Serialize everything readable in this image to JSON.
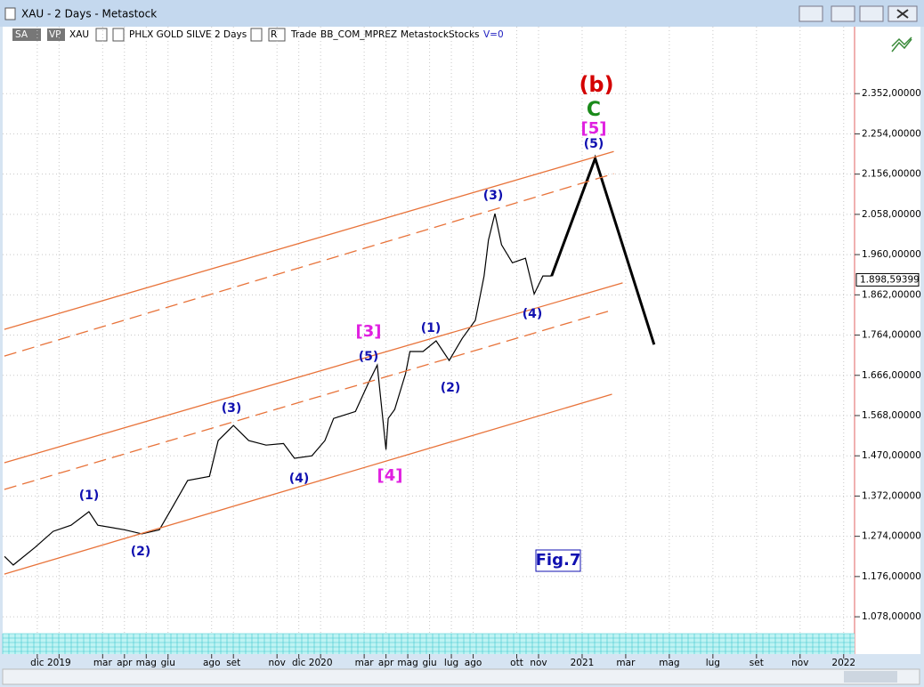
{
  "window": {
    "title": "XAU - 2 Days - Metastock",
    "toolbar": {
      "sa": "SA",
      "vp": "VP",
      "symbol": "XAU",
      "name": "PHLX GOLD SILVE",
      "period": "2 Days",
      "r": "R",
      "trade": "Trade",
      "template": "BB_COM_MPREZ",
      "source": "Metastock",
      "kind": "Stocks",
      "volume": "V=0"
    }
  },
  "chart_data": {
    "type": "line",
    "grid": true,
    "xlim": [
      -1.71,
      37.5
    ],
    "xticks": [
      {
        "value": 0,
        "label": "dic"
      },
      {
        "value": 1,
        "label": "2019"
      },
      {
        "value": 3,
        "label": "mar"
      },
      {
        "value": 4,
        "label": "apr"
      },
      {
        "value": 5,
        "label": "mag"
      },
      {
        "value": 6,
        "label": "giu"
      },
      {
        "value": 8,
        "label": "ago"
      },
      {
        "value": 9,
        "label": "set"
      },
      {
        "value": 11,
        "label": "nov"
      },
      {
        "value": 12,
        "label": "dic"
      },
      {
        "value": 13,
        "label": "2020"
      },
      {
        "value": 15,
        "label": "mar"
      },
      {
        "value": 16,
        "label": "apr"
      },
      {
        "value": 17,
        "label": "mag"
      },
      {
        "value": 18,
        "label": "giu"
      },
      {
        "value": 19,
        "label": "lug"
      },
      {
        "value": 20,
        "label": "ago"
      },
      {
        "value": 22,
        "label": "ott"
      },
      {
        "value": 23,
        "label": "nov"
      },
      {
        "value": 25,
        "label": "2021"
      },
      {
        "value": 27,
        "label": "mar"
      },
      {
        "value": 29,
        "label": "mag"
      },
      {
        "value": 31,
        "label": "lug"
      },
      {
        "value": 33,
        "label": "set"
      },
      {
        "value": 35,
        "label": "nov"
      },
      {
        "value": 37,
        "label": "2022"
      }
    ],
    "ylim": [
      1037,
      2515
    ],
    "yticks": [
      {
        "value": 1078,
        "label": "1.078,00000"
      },
      {
        "value": 1176,
        "label": "1.176,00000"
      },
      {
        "value": 1274,
        "label": "1.274,00000"
      },
      {
        "value": 1372,
        "label": "1.372,00000"
      },
      {
        "value": 1470,
        "label": "1.470,00000"
      },
      {
        "value": 1568,
        "label": "1.568,00000"
      },
      {
        "value": 1666,
        "label": "1.666,00000"
      },
      {
        "value": 1764,
        "label": "1.764,00000"
      },
      {
        "value": 1862,
        "label": "1.862,00000"
      },
      {
        "value": 1960,
        "label": "1.960,00000"
      },
      {
        "value": 2058,
        "label": "2.058,00000"
      },
      {
        "value": 2156,
        "label": "2.156,00000"
      },
      {
        "value": 2254,
        "label": "2.254,00000"
      },
      {
        "value": 2352,
        "label": "2.352,00000"
      }
    ],
    "last_price": {
      "value": 1898.59399,
      "label": "1.898,59399"
    },
    "series": [
      {
        "color": "#000000",
        "width": 1.2,
        "x": [
          -1.5,
          -1.1,
          -0.1,
          0.73,
          1.55,
          2.37,
          2.78,
          4,
          4.8,
          5.6,
          6.2,
          6.9,
          7.9,
          8.3,
          9,
          9.7,
          10.5,
          11.3,
          11.8,
          12.6,
          13.2,
          13.6,
          14.6,
          15.2,
          15.6,
          16,
          16.1,
          16.4,
          16.9,
          17.1,
          17.7,
          18.3,
          18.9,
          19.5,
          20.1,
          20.5,
          20.7,
          21,
          21.3,
          21.8,
          22.4,
          22.8,
          23.2,
          23.6
        ],
        "values": [
          1225,
          1204,
          1247,
          1286,
          1301,
          1334,
          1301,
          1290,
          1280,
          1290,
          1345,
          1410,
          1420,
          1507,
          1544,
          1507,
          1496,
          1500,
          1464,
          1470,
          1507,
          1561,
          1578,
          1648,
          1691,
          1485,
          1561,
          1583,
          1670,
          1724,
          1724,
          1750,
          1702,
          1756,
          1800,
          1908,
          1995,
          2060,
          1984,
          1940,
          1951,
          1864,
          1908,
          1908
        ]
      },
      {
        "color": "#000000",
        "width": 3,
        "x": [
          23.6,
          25.6,
          28.3
        ],
        "values": [
          1908,
          2194,
          1741
        ]
      },
      {
        "color": "#e8733a",
        "width": 1.3,
        "x": [
          -1.51,
          26.45
        ],
        "values": [
          1778,
          2211
        ]
      },
      {
        "color": "#e8733a",
        "width": 1.3,
        "dashed": true,
        "x": [
          -1.51,
          26.45
        ],
        "values": [
          1713,
          2157
        ]
      },
      {
        "color": "#e8733a",
        "width": 1.3,
        "x": [
          -1.51,
          26.86
        ],
        "values": [
          1453,
          1891
        ]
      },
      {
        "color": "#e8733a",
        "width": 1.3,
        "dashed": true,
        "x": [
          -1.51,
          26.45
        ],
        "values": [
          1388,
          1826
        ]
      },
      {
        "color": "#e8733a",
        "width": 1.3,
        "x": [
          -1.51,
          26.37
        ],
        "values": [
          1182,
          1620
        ]
      }
    ],
    "annotations": [
      {
        "text": "(b)",
        "color": "#d40000"
      },
      {
        "text": "C",
        "color": "#1a8a1a"
      },
      {
        "text": "[5]",
        "color": "#e020e0"
      },
      {
        "text": "(5)",
        "color": "#1010b0"
      },
      {
        "text": "(3)",
        "color": "#1010b0"
      },
      {
        "text": "(4)",
        "color": "#1010b0"
      },
      {
        "text": "(1)",
        "color": "#1010b0"
      },
      {
        "text": "(2)",
        "color": "#1010b0"
      },
      {
        "text": "[3]",
        "color": "#e020e0"
      },
      {
        "text": "(5)",
        "color": "#1010b0"
      },
      {
        "text": "[4]",
        "color": "#e020e0"
      },
      {
        "text": "(3)",
        "color": "#1010b0"
      },
      {
        "text": "(4)",
        "color": "#1010b0"
      },
      {
        "text": "(1)",
        "color": "#1010b0"
      },
      {
        "text": "(2)",
        "color": "#1010b0"
      },
      {
        "text": "Fig.7",
        "color": "#1010b0"
      }
    ]
  }
}
